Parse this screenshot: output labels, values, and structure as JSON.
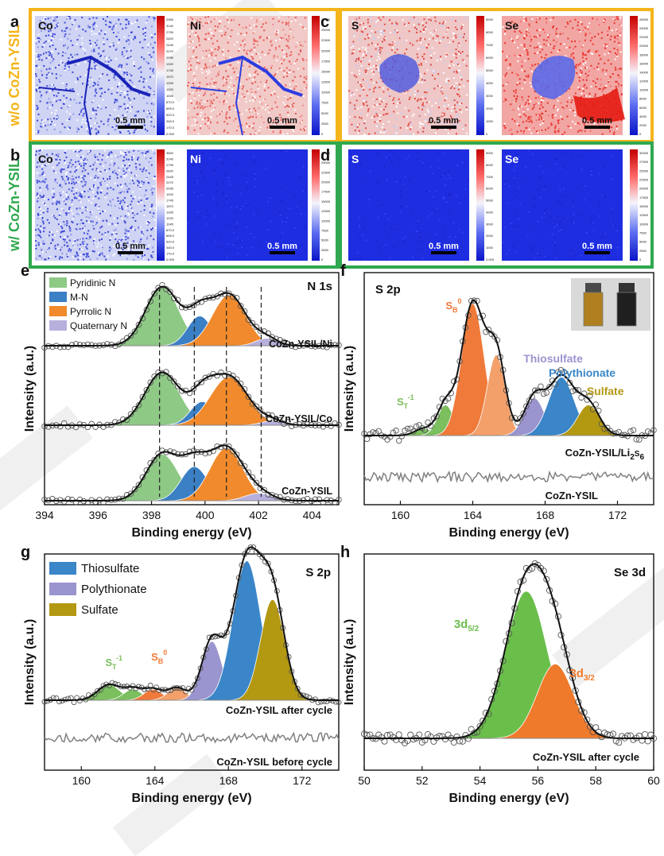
{
  "colors": {
    "orange_frame": "#f4b41a",
    "green_frame": "#2fa84f",
    "map_blue": "#1f2fd6",
    "map_red": "#e2261f",
    "watermark": "#e4e4e4",
    "pyridinic": "#8ec986",
    "mn": "#3b7fc4",
    "pyrrolic": "#f08a2c",
    "quaternary": "#b7b0dd",
    "st": "#7bbf5e",
    "sb": "#f07a3a",
    "sb2": "#f3a06b",
    "thio": "#9a94cf",
    "poly": "#3a86c8",
    "sulfate": "#b39812",
    "se52": "#6abf4b",
    "se32": "#f07a2b",
    "fit": "#111111",
    "ref": "#808080"
  },
  "maps": {
    "row1_label": "w/o CoZn-YSIL",
    "row2_label": "w/ CoZn-YSIL",
    "panels": [
      {
        "letter": "a",
        "frame": "orange",
        "tiles": [
          {
            "element": "Co",
            "scale": "0.5 mm",
            "cbar": [
              "2965",
              "3140",
              "2795",
              "2620",
              "2445",
              "2270",
              "2095",
              "1920",
              "1745",
              "1570",
              "1395",
              "1220",
              "1045",
              "870.0",
              "695.0",
              "520.0",
              "345.0",
              "170.0",
              "0.000"
            ]
          },
          {
            "element": "Ni",
            "scale": "0.5 mm",
            "cbar": [
              "27500",
              "25000",
              "22500",
              "20000",
              "17500",
              "15000",
              "12500",
              "10000",
              "7500",
              "5000",
              "2500",
              "0"
            ]
          }
        ]
      },
      {
        "letter": "c",
        "frame": "orange",
        "tiles": [
          {
            "element": "S",
            "scale": "0.5 mm",
            "cbar": [
              "9000",
              "8000",
              "7000",
              "6000",
              "5000",
              "4000",
              "3000",
              "2000",
              "1000",
              "0"
            ]
          },
          {
            "element": "Se",
            "scale": "0.5 mm",
            "cbar": [
              "26000",
              "24000",
              "22000",
              "20000",
              "18000",
              "16000",
              "14000",
              "12000",
              "10000",
              "8000",
              "6000",
              "4000",
              "2000",
              "0"
            ]
          }
        ]
      },
      {
        "letter": "b",
        "frame": "green",
        "tiles": [
          {
            "element": "Co",
            "scale": "0.5 mm",
            "cbar": [
              "3500",
              "3140",
              "2795",
              "2620",
              "2445",
              "2270",
              "2095",
              "1920",
              "1745",
              "1570",
              "1395",
              "1220",
              "1045",
              "870.0",
              "695.0",
              "520.0",
              "345.0",
              "170.0",
              "0.000"
            ]
          },
          {
            "element": "Ni",
            "scale": "0.5 mm",
            "cbar": [
              "27500",
              "25000",
              "22500",
              "20000",
              "17500",
              "15000",
              "12500",
              "10000",
              "7500",
              "5000",
              "2500",
              "0"
            ]
          }
        ]
      },
      {
        "letter": "d",
        "frame": "green",
        "tiles": [
          {
            "element": "S",
            "scale": "0.5 mm",
            "cbar": [
              "9000",
              "8000",
              "7000",
              "6000",
              "5000",
              "4000",
              "3000",
              "2000",
              "1000",
              "0.000"
            ]
          },
          {
            "element": "Se",
            "scale": "0.5 mm",
            "cbar": [
              "30000",
              "27500",
              "25000",
              "22500",
              "20000",
              "17500",
              "15000",
              "12500",
              "10000",
              "7500",
              "5000",
              "2500",
              "0"
            ]
          }
        ]
      }
    ]
  },
  "chart_data": [
    {
      "panel": "e",
      "type": "line",
      "title": "N 1s",
      "xlabel": "Binding energy (eV)",
      "ylabel": "Intensity (a.u.)",
      "xlim": [
        394,
        405
      ],
      "xticks": [
        394,
        396,
        398,
        400,
        402,
        404
      ],
      "legend": [
        "Pyridinic N",
        "M-N",
        "Pyrrolic N",
        "Quaternary N"
      ],
      "peak_positions": [
        398.3,
        399.6,
        400.8,
        402.1
      ],
      "series": [
        {
          "name": "CoZn-YSIL/Ni",
          "peaks": [
            {
              "component": "Pyridinic N",
              "center": 398.4,
              "height": 0.95,
              "width": 0.62
            },
            {
              "component": "M-N",
              "center": 399.8,
              "height": 0.48,
              "width": 0.45
            },
            {
              "component": "Pyrrolic N",
              "center": 400.9,
              "height": 0.82,
              "width": 0.62
            },
            {
              "component": "Quaternary N",
              "center": 402.3,
              "height": 0.12,
              "width": 0.4
            }
          ]
        },
        {
          "name": "CoZn-YSIL/Co",
          "peaks": [
            {
              "component": "Pyridinic N",
              "center": 398.4,
              "height": 0.85,
              "width": 0.65
            },
            {
              "component": "M-N",
              "center": 399.9,
              "height": 0.38,
              "width": 0.45
            },
            {
              "component": "Pyrrolic N",
              "center": 400.9,
              "height": 0.78,
              "width": 0.7
            },
            {
              "component": "Quaternary N",
              "center": 402.5,
              "height": 0.07,
              "width": 0.4
            }
          ]
        },
        {
          "name": "CoZn-YSIL",
          "peaks": [
            {
              "component": "Pyridinic N",
              "center": 398.4,
              "height": 0.75,
              "width": 0.6
            },
            {
              "component": "M-N",
              "center": 399.6,
              "height": 0.55,
              "width": 0.5
            },
            {
              "component": "Pyrrolic N",
              "center": 400.8,
              "height": 0.85,
              "width": 0.62
            },
            {
              "component": "Quaternary N",
              "center": 402.0,
              "height": 0.12,
              "width": 0.5
            }
          ]
        }
      ]
    },
    {
      "panel": "f",
      "type": "line",
      "title": "S 2p",
      "xlabel": "Binding energy (eV)",
      "ylabel": "Intensity (a.u.)",
      "xlim": [
        158,
        174
      ],
      "xticks": [
        160,
        164,
        168,
        172
      ],
      "series": [
        {
          "name": "CoZn-YSIL/Li2S6",
          "name_base": "CoZn-YSIL/Li",
          "sub": "2",
          "name_mid": "S",
          "sub2": "6",
          "peaks": [
            {
              "component": "S_T^-1",
              "center": 161.3,
              "height": 0.05,
              "width": 0.5
            },
            {
              "component": "S_T^-1",
              "center": 162.5,
              "height": 0.22,
              "width": 0.45
            },
            {
              "component": "S_B^0",
              "center": 164.0,
              "height": 0.95,
              "width": 0.62
            },
            {
              "component": "S_B^0",
              "center": 165.3,
              "height": 0.58,
              "width": 0.5
            },
            {
              "component": "Thiosulfate",
              "center": 167.4,
              "height": 0.27,
              "width": 0.55
            },
            {
              "component": "Polythionate",
              "center": 168.9,
              "height": 0.42,
              "width": 0.7
            },
            {
              "component": "Sulfate",
              "center": 170.4,
              "height": 0.22,
              "width": 0.6
            }
          ]
        },
        {
          "name": "CoZn-YSIL",
          "peaks": []
        }
      ],
      "labels": {
        "sb": "S",
        "sb_sub": "B",
        "sb_sup": "0",
        "st": "S",
        "st_sub": "T",
        "st_sup": "-1",
        "thio": "Thiosulfate",
        "poly": "Polythionate",
        "sulfate": "Sulfate"
      }
    },
    {
      "panel": "g",
      "type": "line",
      "title": "S 2p",
      "xlabel": "Binding energy (eV)",
      "ylabel": "Intensity (a.u.)",
      "xlim": [
        158,
        174
      ],
      "xticks": [
        160,
        164,
        168,
        172
      ],
      "legend": [
        "Thiosulfate",
        "Polythionate",
        "Sulfate"
      ],
      "series": [
        {
          "name": "CoZn-YSIL after cycle",
          "peaks": [
            {
              "component": "S_T^-1",
              "center": 161.5,
              "height": 0.1,
              "width": 0.6
            },
            {
              "component": "S_T^-1",
              "center": 162.8,
              "height": 0.07,
              "width": 0.5
            },
            {
              "component": "S_B^0",
              "center": 163.9,
              "height": 0.07,
              "width": 0.5
            },
            {
              "component": "S_B^0",
              "center": 165.2,
              "height": 0.08,
              "width": 0.5
            },
            {
              "component": "Thiosulfate",
              "center": 167.1,
              "height": 0.38,
              "width": 0.55
            },
            {
              "component": "Polythionate",
              "center": 169.0,
              "height": 0.9,
              "width": 0.75
            },
            {
              "component": "Sulfate",
              "center": 170.4,
              "height": 0.65,
              "width": 0.65
            }
          ]
        },
        {
          "name": "CoZn-YSIL before cycle",
          "peaks": []
        }
      ],
      "labels": {
        "sb": "S",
        "sb_sub": "B",
        "sb_sup": "0",
        "st": "S",
        "st_sub": "T",
        "st_sup": "-1"
      }
    },
    {
      "panel": "h",
      "type": "line",
      "title": "Se 3d",
      "xlabel": "Binding energy (eV)",
      "ylabel": "Intensity (a.u.)",
      "xlim": [
        50,
        60
      ],
      "xticks": [
        50,
        52,
        54,
        56,
        58,
        60
      ],
      "series": [
        {
          "name": "CoZn-YSIL after cycle",
          "peaks": [
            {
              "component": "3d5/2",
              "center": 55.6,
              "height": 0.95,
              "width": 0.72
            },
            {
              "component": "3d3/2",
              "center": 56.6,
              "height": 0.48,
              "width": 0.62
            }
          ]
        }
      ],
      "labels": {
        "d52": "3d",
        "d52_sub": "5/2",
        "d32": "3d",
        "d32_sub": "3/2"
      }
    }
  ]
}
